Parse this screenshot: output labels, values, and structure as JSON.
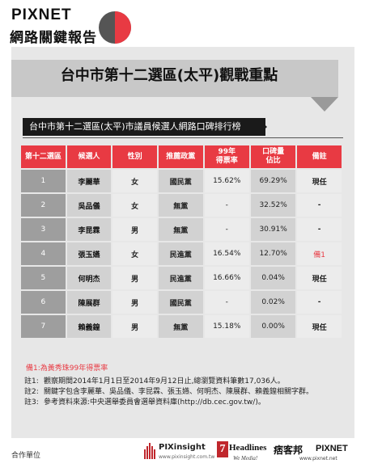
{
  "brand": {
    "name": "PIXNET",
    "subtitle": "網路關鍵報告",
    "pie_colors": [
      "#e83a43",
      "#555555"
    ]
  },
  "chart_title": "台中市第十二選區(太平)觀戰重點",
  "table_title": "台中市第十二選區(太平)市議員候選人網路口碑排行榜",
  "chart_data": {
    "type": "table",
    "columns": [
      "第十二選區",
      "候選人",
      "性別",
      "推薦政黨",
      "99年\n得票率",
      "口碑量\n佔比",
      "備註"
    ],
    "rows": [
      {
        "rank": "1",
        "name": "李麗華",
        "gender": "女",
        "party": "國民黨",
        "vote99": "15.62%",
        "share": "69.29%",
        "note": "現任"
      },
      {
        "rank": "2",
        "name": "吳品儀",
        "gender": "女",
        "party": "無黨",
        "vote99": "-",
        "share": "32.52%",
        "note": "-"
      },
      {
        "rank": "3",
        "name": "李昆霖",
        "gender": "男",
        "party": "無黨",
        "vote99": "-",
        "share": "30.91%",
        "note": "-"
      },
      {
        "rank": "4",
        "name": "張玉嬿",
        "gender": "女",
        "party": "民進黨",
        "vote99": "16.54%",
        "share": "12.70%",
        "note": "備1"
      },
      {
        "rank": "5",
        "name": "何明杰",
        "gender": "男",
        "party": "民進黨",
        "vote99": "16.66%",
        "share": "0.04%",
        "note": "現任"
      },
      {
        "rank": "6",
        "name": "陳展群",
        "gender": "男",
        "party": "國民黨",
        "vote99": "-",
        "share": "0.02%",
        "note": "-"
      },
      {
        "rank": "7",
        "name": "賴義鍠",
        "gender": "男",
        "party": "無黨",
        "vote99": "15.18%",
        "share": "0.00%",
        "note": "現任"
      }
    ]
  },
  "remark": "備1:為黃秀珠99年得票率",
  "notes": [
    {
      "key": "註1:",
      "text": "觀察期間2014年1月1日至2014年9月12日止,總瀏覽資料筆數17,036人。"
    },
    {
      "key": "註2:",
      "text": "關鍵字包含李麗華、吳品儀、李昆霖、張玉嬿、何明杰、陳展群、賴義鍠相關字群。"
    },
    {
      "key": "註3:",
      "text": "參考資料來源:中央選舉委員會選舉資料庫(http://db.cec.gov.tw/)。"
    }
  ],
  "footer": {
    "label": "合作單位",
    "partners": {
      "pixinsight": {
        "name": "PIXinsight",
        "url": "www.pixinsight.com.tw"
      },
      "headlines": {
        "mark": "7",
        "name": "Headlines",
        "tagline": "We Media!"
      },
      "pixnet": {
        "cn": "痞客邦",
        "en": "PIXNET",
        "url": "www.pixnet.net"
      }
    }
  }
}
